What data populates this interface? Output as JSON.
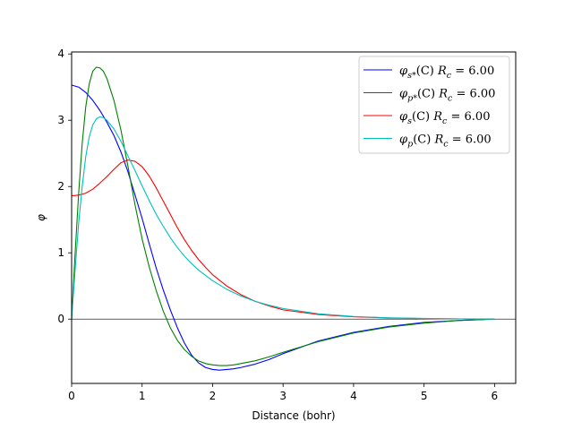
{
  "chart_data": {
    "type": "line",
    "xlabel": "Distance (bohr)",
    "ylabel": "φ",
    "xlim": [
      0,
      6.3
    ],
    "ylim": [
      -0.97,
      4.03
    ],
    "xticks": [
      0,
      1,
      2,
      3,
      4,
      5,
      6
    ],
    "yticks": [
      0,
      1,
      2,
      3,
      4
    ],
    "zero_line": true,
    "grid": false,
    "legend_position": "upper right",
    "series": [
      {
        "name": "φs*(C)  Rc = 6.00",
        "legend_main": "φ",
        "legend_sub": "s*",
        "legend_mid": "(C)  ",
        "legend_r": "R",
        "legend_rsub": "c",
        "legend_val": " = 6.00",
        "color": "#0000ff",
        "x": [
          0,
          0.1,
          0.2,
          0.3,
          0.4,
          0.5,
          0.6,
          0.7,
          0.8,
          0.9,
          1.0,
          1.1,
          1.2,
          1.3,
          1.4,
          1.5,
          1.6,
          1.7,
          1.8,
          1.9,
          2.0,
          2.1,
          2.2,
          2.3,
          2.4,
          2.6,
          2.8,
          3.0,
          3.5,
          4.0,
          4.5,
          5.0,
          5.5,
          6.0
        ],
        "y": [
          3.53,
          3.5,
          3.42,
          3.3,
          3.15,
          2.97,
          2.77,
          2.52,
          2.22,
          1.87,
          1.52,
          1.14,
          0.77,
          0.44,
          0.14,
          -0.13,
          -0.36,
          -0.54,
          -0.66,
          -0.73,
          -0.76,
          -0.77,
          -0.76,
          -0.75,
          -0.73,
          -0.68,
          -0.61,
          -0.52,
          -0.33,
          -0.2,
          -0.11,
          -0.05,
          -0.02,
          0.0
        ]
      },
      {
        "name": "φp*(C)  Rc = 6.00",
        "legend_main": "φ",
        "legend_sub": "p*",
        "legend_mid": "(C)  ",
        "legend_r": "R",
        "legend_rsub": "c",
        "legend_val": " = 6.00",
        "color": "#008000",
        "x": [
          0,
          0.05,
          0.1,
          0.15,
          0.2,
          0.25,
          0.3,
          0.35,
          0.4,
          0.45,
          0.5,
          0.6,
          0.7,
          0.8,
          0.9,
          1.0,
          1.1,
          1.2,
          1.3,
          1.4,
          1.5,
          1.6,
          1.7,
          1.8,
          1.9,
          2.0,
          2.1,
          2.2,
          2.3,
          2.4,
          2.6,
          2.8,
          3.0,
          3.5,
          4.0,
          4.5,
          5.0,
          5.5,
          6.0
        ],
        "y": [
          0.0,
          1.0,
          1.9,
          2.65,
          3.2,
          3.55,
          3.74,
          3.8,
          3.79,
          3.74,
          3.63,
          3.3,
          2.85,
          2.3,
          1.72,
          1.21,
          0.79,
          0.43,
          0.12,
          -0.13,
          -0.32,
          -0.46,
          -0.56,
          -0.63,
          -0.67,
          -0.69,
          -0.7,
          -0.7,
          -0.69,
          -0.67,
          -0.63,
          -0.57,
          -0.5,
          -0.34,
          -0.21,
          -0.12,
          -0.06,
          -0.02,
          0.0
        ]
      },
      {
        "name": "φs(C)  Rc = 6.00",
        "legend_main": "φ",
        "legend_sub": "s",
        "legend_mid": "(C)  ",
        "legend_r": "R",
        "legend_rsub": "c",
        "legend_val": " = 6.00",
        "color": "#ff0000",
        "x": [
          0,
          0.1,
          0.2,
          0.3,
          0.4,
          0.5,
          0.6,
          0.7,
          0.8,
          0.9,
          1.0,
          1.1,
          1.2,
          1.3,
          1.4,
          1.5,
          1.6,
          1.7,
          1.8,
          1.9,
          2.0,
          2.2,
          2.4,
          2.6,
          2.8,
          3.0,
          3.5,
          4.0,
          4.5,
          5.0,
          5.5,
          6.0
        ],
        "y": [
          1.86,
          1.87,
          1.9,
          1.96,
          2.05,
          2.15,
          2.26,
          2.36,
          2.4,
          2.38,
          2.3,
          2.16,
          1.98,
          1.78,
          1.58,
          1.38,
          1.2,
          1.04,
          0.9,
          0.78,
          0.67,
          0.5,
          0.37,
          0.27,
          0.2,
          0.14,
          0.07,
          0.035,
          0.018,
          0.008,
          0.003,
          0.0
        ]
      },
      {
        "name": "φp(C)  Rc = 6.00",
        "legend_main": "φ",
        "legend_sub": "p",
        "legend_mid": "(C)  ",
        "legend_r": "R",
        "legend_rsub": "c",
        "legend_val": " = 6.00",
        "color": "#00bfbf",
        "x": [
          0,
          0.05,
          0.1,
          0.15,
          0.2,
          0.25,
          0.3,
          0.35,
          0.4,
          0.45,
          0.5,
          0.6,
          0.7,
          0.8,
          0.9,
          1.0,
          1.1,
          1.2,
          1.3,
          1.4,
          1.5,
          1.6,
          1.7,
          1.8,
          1.9,
          2.0,
          2.2,
          2.4,
          2.6,
          2.8,
          3.0,
          3.5,
          4.0,
          4.5,
          5.0,
          5.5,
          6.0
        ],
        "y": [
          0.0,
          0.75,
          1.45,
          2.0,
          2.45,
          2.75,
          2.93,
          3.02,
          3.05,
          3.04,
          3.0,
          2.87,
          2.68,
          2.46,
          2.24,
          2.01,
          1.79,
          1.58,
          1.4,
          1.23,
          1.08,
          0.95,
          0.84,
          0.74,
          0.66,
          0.58,
          0.45,
          0.35,
          0.27,
          0.21,
          0.16,
          0.08,
          0.04,
          0.02,
          0.01,
          0.004,
          0.0
        ]
      }
    ]
  }
}
